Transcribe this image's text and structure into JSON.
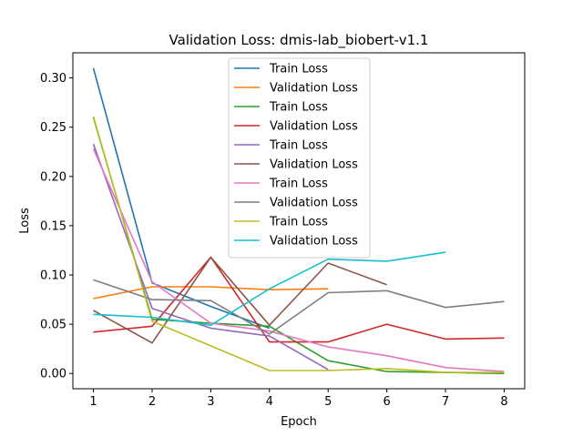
{
  "chart_data": {
    "type": "line",
    "title": "Validation Loss: dmis-lab_biobert-v1.1",
    "xlabel": "Epoch",
    "ylabel": "Loss",
    "xlim": [
      0.65,
      8.35
    ],
    "ylim": [
      -0.0155,
      0.3255
    ],
    "xticks": [
      "1",
      "2",
      "3",
      "4",
      "5",
      "6",
      "7",
      "8"
    ],
    "yticks": [
      "0.00",
      "0.05",
      "0.10",
      "0.15",
      "0.20",
      "0.25",
      "0.30"
    ],
    "legend_position": "upper center",
    "grid": false,
    "series": [
      {
        "name": "Train Loss",
        "color": "#1f77b4",
        "x": [
          1,
          2,
          3,
          4
        ],
        "y": [
          0.31,
          0.092,
          0.068,
          0.046
        ]
      },
      {
        "name": "Validation Loss",
        "color": "#ff7f0e",
        "x": [
          1,
          2,
          3,
          4,
          5
        ],
        "y": [
          0.076,
          0.088,
          0.088,
          0.085,
          0.086
        ]
      },
      {
        "name": "Train Loss",
        "color": "#2ca02c",
        "x": [
          1,
          2,
          3,
          4,
          5,
          6,
          7,
          8
        ],
        "y": [
          0.26,
          0.055,
          0.051,
          0.048,
          0.013,
          0.002,
          0.001,
          0.0
        ]
      },
      {
        "name": "Validation Loss",
        "color": "#d62728",
        "x": [
          1,
          2,
          3,
          4,
          5,
          6,
          7,
          8
        ],
        "y": [
          0.042,
          0.048,
          0.118,
          0.032,
          0.032,
          0.05,
          0.035,
          0.036
        ]
      },
      {
        "name": "Train Loss",
        "color": "#9467bd",
        "x": [
          1,
          2,
          3,
          4,
          5
        ],
        "y": [
          0.233,
          0.066,
          0.046,
          0.038,
          0.004
        ]
      },
      {
        "name": "Validation Loss",
        "color": "#8c564b",
        "x": [
          1,
          2,
          3,
          4,
          5,
          6
        ],
        "y": [
          0.064,
          0.031,
          0.118,
          0.049,
          0.112,
          0.09
        ]
      },
      {
        "name": "Train Loss",
        "color": "#e377c2",
        "x": [
          1,
          2,
          3,
          4,
          5,
          6,
          7,
          8
        ],
        "y": [
          0.228,
          0.093,
          0.051,
          0.043,
          0.027,
          0.018,
          0.006,
          0.002
        ]
      },
      {
        "name": "Validation Loss",
        "color": "#7f7f7f",
        "x": [
          1,
          2,
          3,
          4,
          5,
          6,
          7,
          8
        ],
        "y": [
          0.095,
          0.075,
          0.074,
          0.04,
          0.082,
          0.084,
          0.067,
          0.073
        ]
      },
      {
        "name": "Train Loss",
        "color": "#bcbd22",
        "x": [
          1,
          2,
          3,
          4,
          5,
          6,
          7,
          8
        ],
        "y": [
          0.261,
          0.053,
          0.028,
          0.003,
          0.003,
          0.005,
          0.001,
          0.001
        ]
      },
      {
        "name": "Validation Loss",
        "color": "#17becf",
        "x": [
          1,
          2,
          3,
          4,
          5,
          6,
          7
        ],
        "y": [
          0.06,
          0.057,
          0.049,
          0.086,
          0.116,
          0.114,
          0.123
        ]
      }
    ]
  }
}
